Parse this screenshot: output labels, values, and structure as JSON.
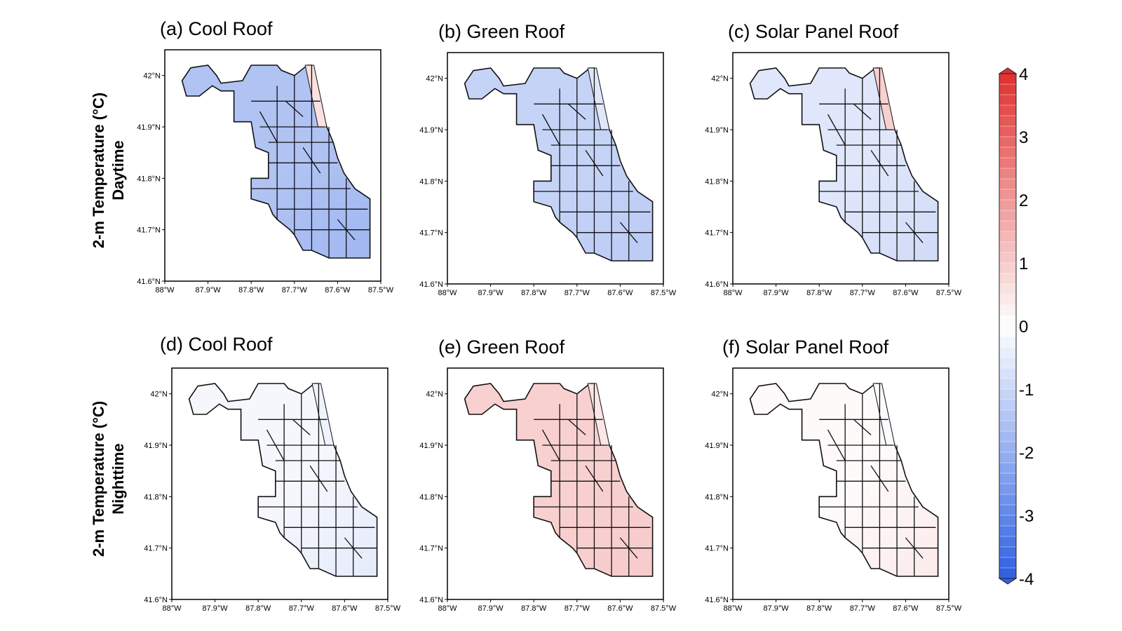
{
  "rows": [
    {
      "line1": "2-m Temperature (°C)",
      "line2": "Daytime"
    },
    {
      "line1": "2-m Temperature (°C)",
      "line2": "Nighttime"
    }
  ],
  "chart_data": [
    {
      "type": "heatmap",
      "title": "(a) Cool Roof",
      "period": "Daytime",
      "anomaly_fill": -1.5,
      "lake_edge_fill": 0.6,
      "south_fill": -1.8
    },
    {
      "type": "heatmap",
      "title": "(b) Green Roof",
      "period": "Daytime",
      "anomaly_fill": -1.1,
      "lake_edge_fill": -0.6,
      "south_fill": -1.3
    },
    {
      "type": "heatmap",
      "title": "(c) Solar Panel Roof",
      "period": "Daytime",
      "anomaly_fill": -0.6,
      "lake_edge_fill": 0.9,
      "south_fill": -0.9
    },
    {
      "type": "heatmap",
      "title": "(d) Cool Roof",
      "period": "Nighttime",
      "anomaly_fill": -0.2,
      "lake_edge_fill": -0.3,
      "south_fill": -0.5
    },
    {
      "type": "heatmap",
      "title": "(e) Green Roof",
      "period": "Nighttime",
      "anomaly_fill": 0.9,
      "lake_edge_fill": 0.5,
      "south_fill": 1.0
    },
    {
      "type": "heatmap",
      "title": "(f) Solar Panel Roof",
      "period": "Nighttime",
      "anomaly_fill": 0.1,
      "lake_edge_fill": -0.1,
      "south_fill": 0.4
    }
  ],
  "axes": {
    "y_ticks": [
      "42°N",
      "41.9°N",
      "41.8°N",
      "41.7°N",
      "41.6°N"
    ],
    "x_ticks": [
      "88°W",
      "87.9°W",
      "87.8°W",
      "87.7°W",
      "87.6°W",
      "87.5°W"
    ],
    "lat_range": [
      41.6,
      42.05
    ],
    "lon_range": [
      -88.0,
      -87.5
    ]
  },
  "colorbar": {
    "min": -4,
    "max": 4,
    "ticks": [
      "4",
      "3",
      "2",
      "1",
      "0",
      "-1",
      "-2",
      "-3",
      "-4"
    ],
    "color_low": "#2d5fe0",
    "color_mid": "#ffffff",
    "color_high": "#e03030"
  }
}
